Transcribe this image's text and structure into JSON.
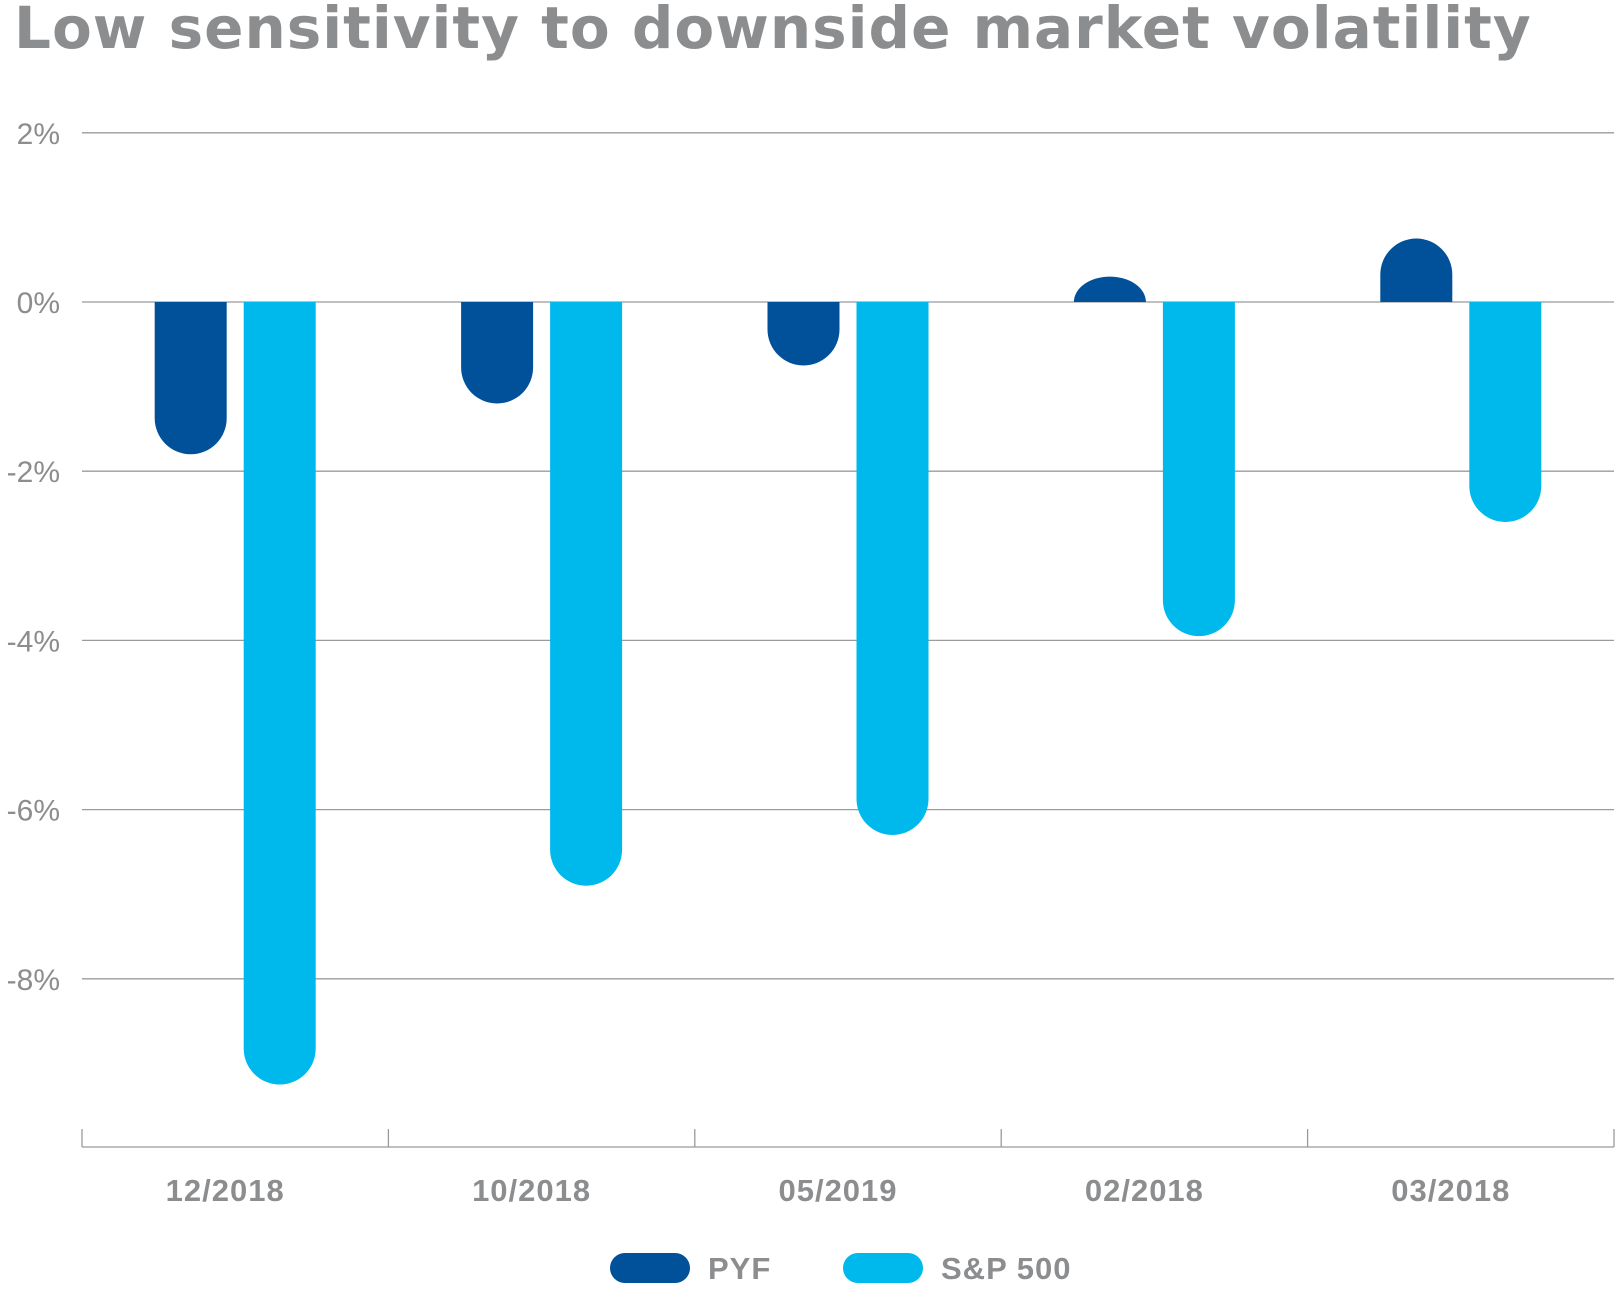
{
  "colors": {
    "pyf": "#00519a",
    "sp500": "#00b9ec",
    "text": "#8c8d8f",
    "grid": "#9a9b9d"
  },
  "chart_data": {
    "type": "bar",
    "title": "Low sensitivity to downside market volatility",
    "xlabel": "",
    "ylabel": "",
    "ylim": [
      -9.7,
      2
    ],
    "yticks": [
      2,
      0,
      -2,
      -4,
      -6,
      -8
    ],
    "ytick_labels": [
      "2%",
      "0%",
      "-2%",
      "-4%",
      "-6%",
      "-8%"
    ],
    "categories": [
      "12/2018",
      "10/2018",
      "05/2019",
      "02/2018",
      "03/2018"
    ],
    "series": [
      {
        "name": "PYF",
        "color": "#00519a",
        "values": [
          -1.8,
          -1.2,
          -0.75,
          0.3,
          0.75
        ]
      },
      {
        "name": "S&P 500",
        "color": "#00b9ec",
        "values": [
          -9.25,
          -6.9,
          -6.3,
          -3.95,
          -2.6
        ]
      }
    ],
    "grid": true,
    "legend_position": "bottom-center"
  }
}
